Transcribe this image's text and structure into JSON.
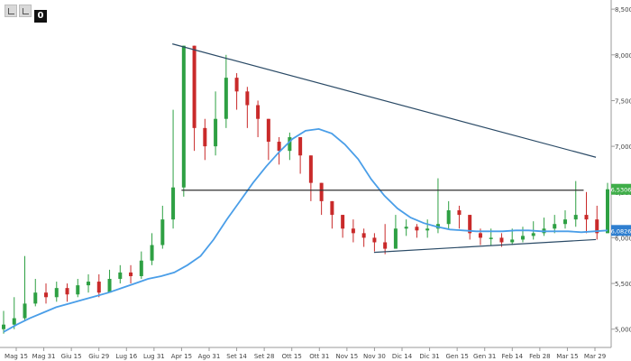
{
  "toolbar": {
    "badge": "0",
    "icons": [
      "crosshair-icon",
      "draw-icon",
      "settings-icon"
    ]
  },
  "chart_data": {
    "type": "candlestick",
    "x_tick_labels": [
      "Mag 15",
      "Mag 31",
      "Giu 15",
      "Giu 29",
      "Lug 16",
      "Lug 31",
      "Apr 15",
      "Ago 31",
      "Set 14",
      "Set 28",
      "Ott 15",
      "Ott 31",
      "Nov 15",
      "Nov 30",
      "Dic 14",
      "Dic 31",
      "Gen 15",
      "Gen 31",
      "Feb 14",
      "Feb 28",
      "Mar 15",
      "Mar 29"
    ],
    "y_ticks": [
      "8,5000",
      "8,0000",
      "7,5000",
      "7,0000",
      "6,5000",
      "6,0000",
      "5,5000",
      "5,0000"
    ],
    "ylim": [
      4.8,
      8.6
    ],
    "price_badges": [
      {
        "label": "6,5306",
        "value": 6.53,
        "color": "#3fae49"
      },
      {
        "label": "6,0826",
        "value": 6.08,
        "color": "#2f7fd0"
      }
    ],
    "moving_average": {
      "color": "#4a9ee8",
      "values": [
        4.97,
        5.05,
        5.12,
        5.18,
        5.24,
        5.28,
        5.32,
        5.36,
        5.4,
        5.45,
        5.5,
        5.55,
        5.58,
        5.62,
        5.7,
        5.8,
        5.98,
        6.2,
        6.4,
        6.6,
        6.78,
        6.94,
        7.08,
        7.17,
        7.19,
        7.14,
        7.02,
        6.86,
        6.64,
        6.46,
        6.32,
        6.22,
        6.16,
        6.12,
        6.09,
        6.08,
        6.07,
        6.07,
        6.07,
        6.08,
        6.08,
        6.07,
        6.07,
        6.07,
        6.06,
        6.07,
        6.08
      ]
    },
    "candles": {
      "up_color": "#2ea043",
      "down_color": "#c92a2a",
      "close": [
        5.05,
        5.12,
        5.28,
        5.4,
        5.35,
        5.45,
        5.38,
        5.48,
        5.52,
        5.4,
        5.55,
        5.62,
        5.58,
        5.75,
        5.92,
        6.2,
        6.55,
        8.1,
        7.2,
        7.0,
        7.3,
        7.75,
        7.6,
        7.45,
        7.3,
        7.05,
        6.95,
        7.1,
        6.9,
        6.6,
        6.4,
        6.25,
        6.1,
        6.05,
        6.0,
        5.95,
        5.88,
        6.1,
        6.12,
        6.08,
        6.1,
        6.15,
        6.3,
        6.25,
        6.05,
        6.0,
        6.0,
        5.95,
        5.98,
        6.02,
        6.05,
        6.1,
        6.15,
        6.2,
        6.25,
        6.2,
        6.05,
        6.53
      ],
      "low": [
        4.95,
        5.0,
        5.1,
        5.25,
        5.28,
        5.3,
        5.3,
        5.35,
        5.4,
        5.35,
        5.4,
        5.5,
        5.5,
        5.55,
        5.7,
        5.88,
        6.1,
        6.45,
        6.95,
        6.85,
        6.9,
        7.2,
        7.4,
        7.2,
        7.1,
        6.85,
        6.8,
        6.85,
        6.7,
        6.4,
        6.25,
        6.1,
        6.0,
        5.95,
        5.9,
        5.85,
        5.82,
        5.95,
        6.02,
        6.0,
        6.0,
        6.05,
        6.1,
        6.1,
        5.98,
        5.92,
        5.92,
        5.9,
        5.92,
        5.95,
        5.98,
        6.02,
        6.05,
        6.1,
        6.12,
        6.05,
        5.98,
        6.05
      ],
      "high": [
        5.2,
        5.35,
        5.8,
        5.55,
        5.5,
        5.52,
        5.5,
        5.55,
        5.6,
        5.6,
        5.65,
        5.7,
        5.7,
        5.85,
        6.05,
        6.35,
        7.4,
        8.1,
        8.05,
        7.3,
        7.6,
        8.0,
        7.8,
        7.65,
        7.5,
        7.2,
        7.1,
        7.15,
        7.05,
        6.75,
        6.6,
        6.4,
        6.25,
        6.2,
        6.1,
        6.05,
        6.15,
        6.25,
        6.2,
        6.15,
        6.2,
        6.65,
        6.4,
        6.35,
        6.15,
        6.1,
        6.1,
        6.05,
        6.1,
        6.12,
        6.18,
        6.22,
        6.25,
        6.3,
        6.62,
        6.5,
        6.35,
        6.6
      ]
    },
    "trendlines": [
      {
        "name": "upper",
        "points": [
          [
            0.282,
            8.12
          ],
          [
            0.975,
            6.88
          ]
        ],
        "color": "#2a4a66"
      },
      {
        "name": "support",
        "points": [
          [
            0.297,
            6.52
          ],
          [
            0.955,
            6.52
          ]
        ],
        "color": "#333333"
      },
      {
        "name": "lower",
        "points": [
          [
            0.612,
            5.84
          ],
          [
            0.975,
            5.98
          ]
        ],
        "color": "#2a4a66"
      }
    ]
  }
}
